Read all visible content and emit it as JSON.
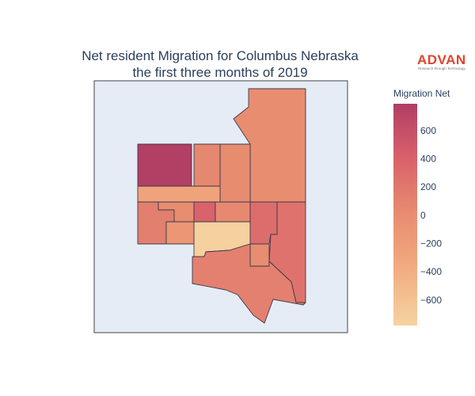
{
  "title": {
    "line1": "Net resident Migration for Columbus Nebraska",
    "line2": "the first three months of 2019"
  },
  "logo": {
    "name": "ADVAN",
    "tagline": "Research through Technology"
  },
  "colorbar": {
    "title": "Migration Net",
    "ticks": [
      "600",
      "400",
      "200",
      "0",
      "−200",
      "−400",
      "−600"
    ],
    "tick_values": [
      600,
      400,
      200,
      0,
      -200,
      -400,
      -600
    ],
    "range": [
      -780,
      790
    ],
    "colorscale": [
      "#f5d3a1",
      "#f1a57c",
      "#e88d70",
      "#d9626b",
      "#b13e64"
    ]
  },
  "map": {
    "background": "#e5ecf6",
    "regions": [
      {
        "id": "northeast-large",
        "value": 0
      },
      {
        "id": "northwest-dark",
        "value": 780
      },
      {
        "id": "north-mid-small",
        "value": 50
      },
      {
        "id": "north-mid-tall",
        "value": 10
      },
      {
        "id": "west-light-strip",
        "value": -350
      },
      {
        "id": "west-lower",
        "value": 130
      },
      {
        "id": "center-small-a",
        "value": 0
      },
      {
        "id": "center-dark-small",
        "value": 400
      },
      {
        "id": "center-mid",
        "value": 40
      },
      {
        "id": "east-mid",
        "value": 300
      },
      {
        "id": "east-lower-tall",
        "value": 250
      },
      {
        "id": "west-step",
        "value": -150
      },
      {
        "id": "center-pale",
        "value": -760
      },
      {
        "id": "center-lower-small",
        "value": 0
      },
      {
        "id": "south-large",
        "value": 120
      }
    ]
  }
}
